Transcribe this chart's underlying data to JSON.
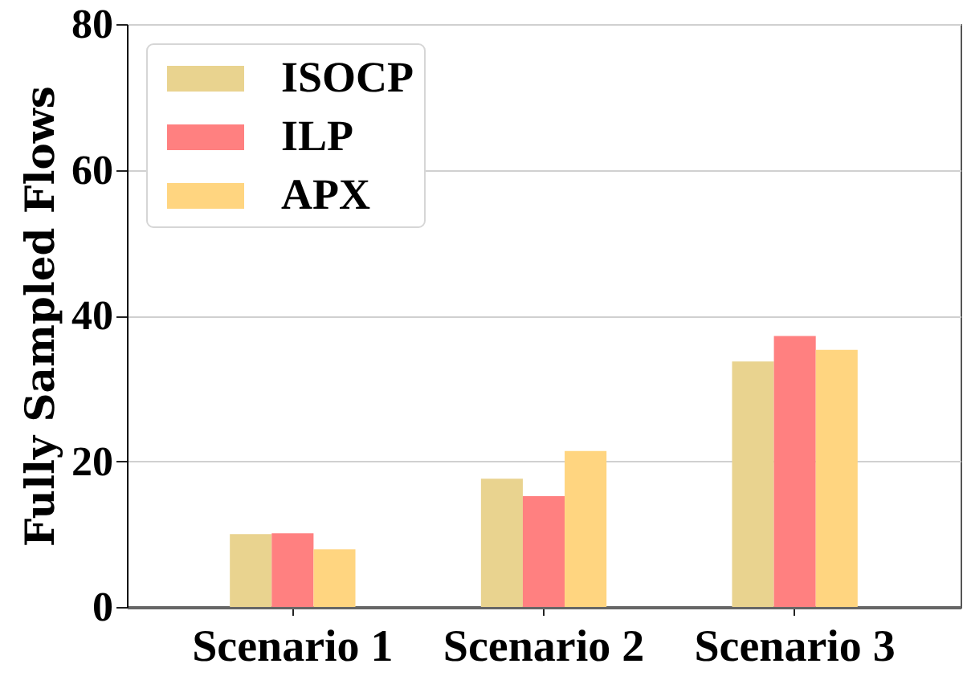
{
  "chart_data": {
    "type": "bar",
    "ylabel": "Fully Sampled Flows",
    "categories": [
      "Scenario 1",
      "Scenario 2",
      "Scenario 3"
    ],
    "series": [
      {
        "name": "ISOCP",
        "color": "#e9d38f",
        "values": [
          10,
          17.6,
          33.7
        ]
      },
      {
        "name": "ILP",
        "color": "#ff8080",
        "values": [
          10.1,
          15.2,
          37.2
        ]
      },
      {
        "name": "APX",
        "color": "#ffd580",
        "values": [
          7.9,
          21.4,
          35.3
        ]
      }
    ],
    "ylim": [
      0,
      80
    ],
    "yticks": [
      0,
      20,
      40,
      60,
      80
    ],
    "grid": "y",
    "legend": "top left"
  }
}
